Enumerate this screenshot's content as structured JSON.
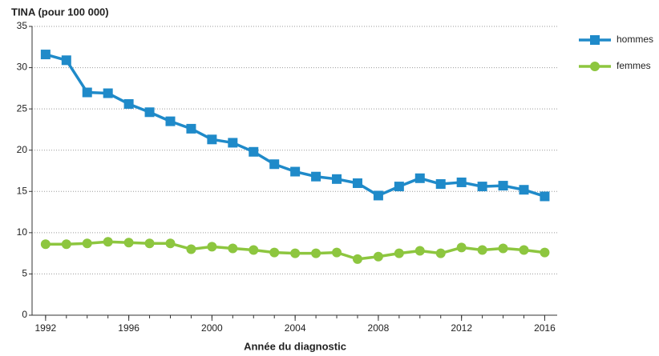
{
  "chart_data": {
    "type": "line",
    "title": "TINA (pour 100 000)",
    "x_label": "Année du diagnostic",
    "x": [
      1992,
      1993,
      1994,
      1995,
      1996,
      1997,
      1998,
      1999,
      2000,
      2001,
      2002,
      2003,
      2004,
      2005,
      2006,
      2007,
      2008,
      2009,
      2010,
      2011,
      2012,
      2013,
      2014,
      2015,
      2016
    ],
    "series": [
      {
        "name": "hommes",
        "color": "#1f8ac9",
        "marker": "square",
        "values": [
          31.6,
          30.9,
          27.0,
          26.9,
          25.6,
          24.6,
          23.5,
          22.6,
          21.3,
          20.9,
          19.8,
          18.3,
          17.4,
          16.8,
          16.5,
          16.0,
          14.5,
          15.6,
          16.6,
          15.9,
          16.1,
          15.6,
          15.7,
          15.2,
          14.4
        ]
      },
      {
        "name": "femmes",
        "color": "#8dc63f",
        "marker": "circle",
        "values": [
          8.6,
          8.6,
          8.7,
          8.9,
          8.8,
          8.7,
          8.7,
          8.0,
          8.3,
          8.1,
          7.9,
          7.6,
          7.5,
          7.5,
          7.6,
          6.8,
          7.1,
          7.5,
          7.8,
          7.5,
          8.2,
          7.9,
          8.1,
          7.9,
          7.6
        ]
      }
    ],
    "xlim": [
      1991.35,
      2016.6
    ],
    "xticks": [
      1992,
      1996,
      2000,
      2004,
      2008,
      2012,
      2016
    ],
    "ylim": [
      0,
      35
    ],
    "yticks": [
      0,
      5,
      10,
      15,
      20,
      25,
      30,
      35
    ],
    "grid": true,
    "legend": "right"
  }
}
